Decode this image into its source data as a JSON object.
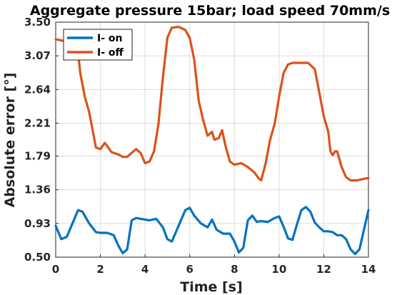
{
  "chart_data": {
    "type": "line",
    "title": "Aggregate pressure 15bar; load speed 70mm/s",
    "xlabel": "Time [s]",
    "ylabel": "Absolute error [°]",
    "xlim": [
      0,
      14
    ],
    "ylim": [
      0.5,
      3.5
    ],
    "xticks": [
      "0",
      "2",
      "4",
      "6",
      "8",
      "10",
      "12",
      "14"
    ],
    "yticks": [
      "0.50",
      "0.93",
      "1.36",
      "1.79",
      "2.21",
      "2.64",
      "3.07",
      "3.50"
    ],
    "grid": true,
    "legend_position": "top-left",
    "colors": {
      "i_on": "#0072bd",
      "i_off": "#d95319"
    },
    "series": [
      {
        "name": "I- on",
        "color": "#0072bd",
        "x": [
          0,
          0.25,
          0.5,
          0.75,
          1.0,
          1.2,
          1.5,
          1.8,
          2.0,
          2.3,
          2.6,
          2.8,
          3.0,
          3.2,
          3.4,
          3.6,
          3.8,
          4.0,
          4.2,
          4.5,
          4.8,
          5.0,
          5.2,
          5.5,
          5.8,
          6.0,
          6.2,
          6.5,
          6.8,
          7.0,
          7.2,
          7.5,
          7.8,
          8.0,
          8.2,
          8.4,
          8.6,
          8.8,
          9.0,
          9.2,
          9.5,
          9.8,
          10.0,
          10.2,
          10.4,
          10.6,
          10.8,
          11.0,
          11.2,
          11.4,
          11.6,
          11.8,
          12.0,
          12.2,
          12.4,
          12.6,
          12.8,
          13.0,
          13.2,
          13.4,
          13.6,
          13.8,
          14.0
        ],
        "y": [
          0.9,
          0.73,
          0.76,
          0.93,
          1.1,
          1.08,
          0.93,
          0.82,
          0.81,
          0.81,
          0.78,
          0.65,
          0.55,
          0.6,
          0.97,
          1.0,
          0.99,
          0.98,
          0.97,
          0.99,
          0.88,
          0.73,
          0.7,
          0.9,
          1.1,
          1.13,
          1.03,
          0.93,
          0.88,
          0.98,
          0.85,
          0.8,
          0.8,
          0.7,
          0.56,
          0.62,
          0.97,
          1.03,
          0.95,
          0.96,
          0.95,
          1.0,
          1.02,
          0.89,
          0.74,
          0.72,
          0.92,
          1.1,
          1.14,
          1.08,
          0.94,
          0.88,
          0.83,
          0.83,
          0.82,
          0.78,
          0.78,
          0.73,
          0.6,
          0.54,
          0.6,
          0.85,
          1.1
        ]
      },
      {
        "name": "I- off",
        "color": "#d95319",
        "x": [
          0,
          0.2,
          0.5,
          0.8,
          1.0,
          1.1,
          1.3,
          1.5,
          1.7,
          1.8,
          2.0,
          2.2,
          2.3,
          2.5,
          2.8,
          3.0,
          3.2,
          3.4,
          3.6,
          3.8,
          4.0,
          4.2,
          4.4,
          4.6,
          4.8,
          5.0,
          5.2,
          5.5,
          5.8,
          6.0,
          6.2,
          6.4,
          6.6,
          6.8,
          7.0,
          7.1,
          7.3,
          7.45,
          7.6,
          7.8,
          8.0,
          8.3,
          8.6,
          8.9,
          9.1,
          9.2,
          9.4,
          9.6,
          9.8,
          10.0,
          10.2,
          10.4,
          10.6,
          11.0,
          11.3,
          11.6,
          11.8,
          12.0,
          12.2,
          12.3,
          12.4,
          12.5,
          12.6,
          12.8,
          13.0,
          13.2,
          13.5,
          13.8,
          14.0
        ],
        "y": [
          3.28,
          3.27,
          3.25,
          3.22,
          3.12,
          2.85,
          2.55,
          2.35,
          2.05,
          1.9,
          1.88,
          1.96,
          1.92,
          1.84,
          1.81,
          1.78,
          1.78,
          1.83,
          1.88,
          1.83,
          1.7,
          1.72,
          1.85,
          2.2,
          2.8,
          3.3,
          3.43,
          3.44,
          3.4,
          3.3,
          3.02,
          2.5,
          2.25,
          2.05,
          2.1,
          2.0,
          2.02,
          2.12,
          1.92,
          1.72,
          1.68,
          1.7,
          1.65,
          1.58,
          1.5,
          1.48,
          1.7,
          2.0,
          2.2,
          2.55,
          2.85,
          2.96,
          2.98,
          2.98,
          2.98,
          2.9,
          2.6,
          2.3,
          2.1,
          1.85,
          1.8,
          1.85,
          1.85,
          1.65,
          1.52,
          1.48,
          1.48,
          1.5,
          1.51
        ]
      }
    ]
  }
}
